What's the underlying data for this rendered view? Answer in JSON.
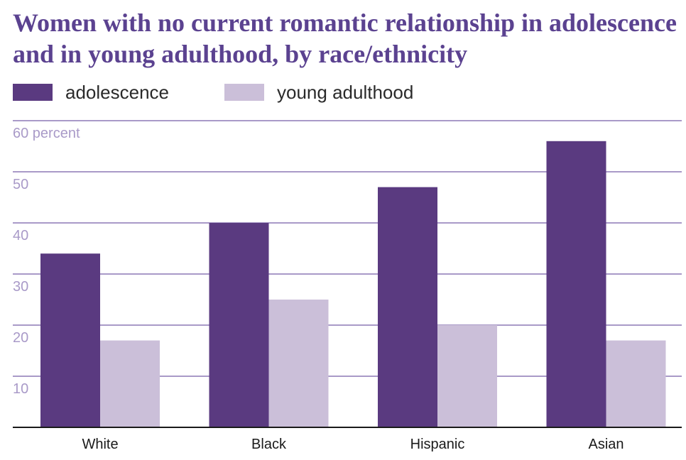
{
  "chart_data": {
    "type": "bar",
    "title": "Women with no current romantic relationship in adolescence and in young adulthood, by race/ethnicity",
    "categories": [
      "White",
      "Black",
      "Hispanic",
      "Asian"
    ],
    "series": [
      {
        "name": "adolescence",
        "color": "#5a3a80",
        "values": [
          34,
          40,
          47,
          56
        ]
      },
      {
        "name": "young adulthood",
        "color": "#cbbfd9",
        "values": [
          17,
          25,
          20,
          17
        ]
      }
    ],
    "ylim": [
      0,
      60
    ],
    "yticks": [
      {
        "value": 60,
        "label": "60 percent"
      },
      {
        "value": 50,
        "label": "50"
      },
      {
        "value": 40,
        "label": "40"
      },
      {
        "value": 30,
        "label": "30"
      },
      {
        "value": 20,
        "label": "20"
      },
      {
        "value": 10,
        "label": "10"
      }
    ],
    "grid": true,
    "legend_position": "top-left",
    "gridline_color": "#a99ac8",
    "tick_label_color": "#a99ac8"
  }
}
